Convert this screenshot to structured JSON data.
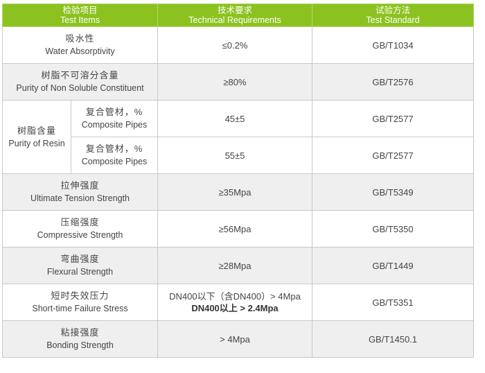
{
  "header": {
    "col1": {
      "zh": "检验项目",
      "en": "Test Items"
    },
    "col2": {
      "zh": "技术要求",
      "en": "Technical Requirements"
    },
    "col3": {
      "zh": "试验方法",
      "en": "Test Standard"
    }
  },
  "rows": [
    {
      "zh": "吸水性",
      "en": "Water Absorptivity",
      "req": "≤0.2%",
      "std": "GB/T1034"
    },
    {
      "zh": "树脂不可溶分含量",
      "en": "Purity of Non Soluble Constituent",
      "req": "≥80%",
      "std": "GB/T2576"
    },
    {
      "zh": "树脂含量",
      "en": "Purity of Resin",
      "sub": [
        {
          "zh": "复合管材，%",
          "en": "Composite Pipes",
          "req": "45±5",
          "std": "GB/T2577"
        },
        {
          "zh": "复合管材，%",
          "en": "Composite Pipes",
          "req": "55±5",
          "std": "GB/T2577"
        }
      ]
    },
    {
      "zh": "拉伸强度",
      "en": "Ultimate Tension Strength",
      "req": "≥35Mpa",
      "std": "GB/T5349"
    },
    {
      "zh": "压缩强度",
      "en": "Compressive Strength",
      "req": "≥56Mpa",
      "std": "GB/T5350"
    },
    {
      "zh": "弯曲强度",
      "en": "Flexural Strength",
      "req": "≥28Mpa",
      "std": "GB/T1449"
    },
    {
      "zh": "短时失效压力",
      "en": "Short-time Failure Stress",
      "req": "DN400以下（含DN400）> 4Mpa",
      "req2": "DN400以上 > 2.4Mpa",
      "std": "GB/T5351"
    },
    {
      "zh": "粘接强度",
      "en": "Bonding Strength",
      "req": "> 4Mpa",
      "std": "GB/T1450.1"
    }
  ],
  "colors": {
    "header_bg": "#8cc220",
    "alt_row_bg": "#efefef"
  }
}
